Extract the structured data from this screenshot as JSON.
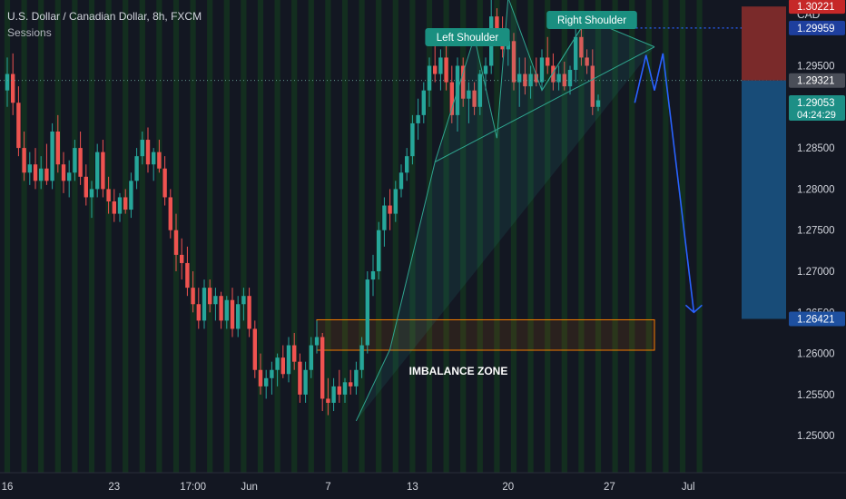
{
  "header": {
    "title": "U.S. Dollar / Canadian Dollar, 8h, FXCM",
    "indicator": "Sessions"
  },
  "chart_data": {
    "type": "candlestick",
    "symbol": "U.S. Dollar / Canadian Dollar",
    "interval": "8h",
    "source": "FXCM",
    "currency": "CAD",
    "ylim": [
      1.2455,
      1.303
    ],
    "y_ticks": [
      "1.25000",
      "1.25500",
      "1.26000",
      "1.26500",
      "1.27000",
      "1.27500",
      "1.28000",
      "1.28500",
      "1.29500"
    ],
    "x_ticks": [
      {
        "label": "16",
        "i": 0
      },
      {
        "label": "23",
        "i": 19
      },
      {
        "label": "17:00",
        "i": 33
      },
      {
        "label": "Jun",
        "i": 43
      },
      {
        "label": "7",
        "i": 57
      },
      {
        "label": "13",
        "i": 72
      },
      {
        "label": "20",
        "i": 89
      },
      {
        "label": "27",
        "i": 107
      },
      {
        "label": "Jul",
        "i": 121
      }
    ],
    "candles": [
      [
        1.292,
        1.296,
        1.29,
        1.294
      ],
      [
        1.294,
        1.2965,
        1.289,
        1.2905
      ],
      [
        1.2905,
        1.2925,
        1.284,
        1.285
      ],
      [
        1.285,
        1.287,
        1.281,
        1.282
      ],
      [
        1.282,
        1.2845,
        1.2805,
        1.283
      ],
      [
        1.283,
        1.285,
        1.28,
        1.281
      ],
      [
        1.281,
        1.284,
        1.28,
        1.2825
      ],
      [
        1.2825,
        1.2855,
        1.2805,
        1.281
      ],
      [
        1.281,
        1.288,
        1.28,
        1.287
      ],
      [
        1.287,
        1.289,
        1.282,
        1.283
      ],
      [
        1.283,
        1.2845,
        1.2795,
        1.281
      ],
      [
        1.281,
        1.2835,
        1.279,
        1.282
      ],
      [
        1.282,
        1.286,
        1.281,
        1.285
      ],
      [
        1.285,
        1.287,
        1.2805,
        1.2815
      ],
      [
        1.2815,
        1.283,
        1.278,
        1.279
      ],
      [
        1.279,
        1.281,
        1.2765,
        1.28
      ],
      [
        1.28,
        1.2855,
        1.279,
        1.2845
      ],
      [
        1.2845,
        1.286,
        1.279,
        1.28
      ],
      [
        1.28,
        1.2815,
        1.277,
        1.2785
      ],
      [
        1.2785,
        1.28,
        1.276,
        1.277
      ],
      [
        1.277,
        1.2795,
        1.276,
        1.279
      ],
      [
        1.279,
        1.28,
        1.277,
        1.2775
      ],
      [
        1.2775,
        1.282,
        1.2765,
        1.281
      ],
      [
        1.281,
        1.285,
        1.28,
        1.284
      ],
      [
        1.284,
        1.287,
        1.283,
        1.286
      ],
      [
        1.286,
        1.2875,
        1.282,
        1.283
      ],
      [
        1.283,
        1.285,
        1.281,
        1.2845
      ],
      [
        1.2845,
        1.286,
        1.282,
        1.2825
      ],
      [
        1.2825,
        1.284,
        1.278,
        1.279
      ],
      [
        1.279,
        1.28,
        1.274,
        1.275
      ],
      [
        1.275,
        1.277,
        1.27,
        1.272
      ],
      [
        1.272,
        1.274,
        1.269,
        1.271
      ],
      [
        1.271,
        1.273,
        1.267,
        1.268
      ],
      [
        1.268,
        1.27,
        1.265,
        1.266
      ],
      [
        1.266,
        1.268,
        1.263,
        1.264
      ],
      [
        1.264,
        1.269,
        1.263,
        1.268
      ],
      [
        1.268,
        1.269,
        1.265,
        1.266
      ],
      [
        1.266,
        1.268,
        1.264,
        1.267
      ],
      [
        1.267,
        1.2675,
        1.263,
        1.264
      ],
      [
        1.264,
        1.267,
        1.263,
        1.2665
      ],
      [
        1.2665,
        1.268,
        1.262,
        1.263
      ],
      [
        1.263,
        1.267,
        1.262,
        1.266
      ],
      [
        1.266,
        1.268,
        1.264,
        1.267
      ],
      [
        1.267,
        1.268,
        1.262,
        1.263
      ],
      [
        1.263,
        1.264,
        1.257,
        1.258
      ],
      [
        1.258,
        1.26,
        1.255,
        1.256
      ],
      [
        1.256,
        1.258,
        1.2545,
        1.257
      ],
      [
        1.257,
        1.259,
        1.255,
        1.258
      ],
      [
        1.258,
        1.26,
        1.256,
        1.2595
      ],
      [
        1.2595,
        1.261,
        1.257,
        1.2575
      ],
      [
        1.2575,
        1.262,
        1.2565,
        1.261
      ],
      [
        1.261,
        1.2625,
        1.258,
        1.259
      ],
      [
        1.259,
        1.26,
        1.254,
        1.255
      ],
      [
        1.255,
        1.259,
        1.254,
        1.258
      ],
      [
        1.258,
        1.262,
        1.257,
        1.261
      ],
      [
        1.261,
        1.264,
        1.26,
        1.262
      ],
      [
        1.262,
        1.2625,
        1.253,
        1.2545
      ],
      [
        1.2545,
        1.257,
        1.2525,
        1.254
      ],
      [
        1.254,
        1.257,
        1.253,
        1.256
      ],
      [
        1.256,
        1.258,
        1.254,
        1.255
      ],
      [
        1.255,
        1.257,
        1.254,
        1.2565
      ],
      [
        1.2565,
        1.258,
        1.255,
        1.256
      ],
      [
        1.256,
        1.259,
        1.255,
        1.258
      ],
      [
        1.258,
        1.262,
        1.257,
        1.261
      ],
      [
        1.261,
        1.27,
        1.26,
        1.269
      ],
      [
        1.269,
        1.272,
        1.267,
        1.27
      ],
      [
        1.27,
        1.276,
        1.269,
        1.275
      ],
      [
        1.275,
        1.279,
        1.273,
        1.278
      ],
      [
        1.278,
        1.28,
        1.275,
        1.277
      ],
      [
        1.277,
        1.281,
        1.276,
        1.28
      ],
      [
        1.28,
        1.283,
        1.279,
        1.282
      ],
      [
        1.282,
        1.285,
        1.281,
        1.284
      ],
      [
        1.284,
        1.289,
        1.283,
        1.288
      ],
      [
        1.288,
        1.291,
        1.286,
        1.289
      ],
      [
        1.289,
        1.293,
        1.288,
        1.292
      ],
      [
        1.292,
        1.296,
        1.29,
        1.295
      ],
      [
        1.295,
        1.2975,
        1.293,
        1.294
      ],
      [
        1.294,
        1.297,
        1.292,
        1.296
      ],
      [
        1.296,
        1.298,
        1.292,
        1.293
      ],
      [
        1.293,
        1.295,
        1.288,
        1.289
      ],
      [
        1.289,
        1.296,
        1.287,
        1.295
      ],
      [
        1.295,
        1.296,
        1.29,
        1.291
      ],
      [
        1.291,
        1.293,
        1.288,
        1.292
      ],
      [
        1.292,
        1.293,
        1.289,
        1.29
      ],
      [
        1.29,
        1.2945,
        1.289,
        1.294
      ],
      [
        1.294,
        1.296,
        1.292,
        1.295
      ],
      [
        1.295,
        1.303,
        1.294,
        1.301
      ],
      [
        1.301,
        1.302,
        1.298,
        1.299
      ],
      [
        1.299,
        1.301,
        1.296,
        1.297
      ],
      [
        1.297,
        1.299,
        1.295,
        1.298
      ],
      [
        1.298,
        1.299,
        1.292,
        1.293
      ],
      [
        1.293,
        1.296,
        1.29,
        1.294
      ],
      [
        1.294,
        1.296,
        1.2915,
        1.2925
      ],
      [
        1.2925,
        1.295,
        1.291,
        1.294
      ],
      [
        1.294,
        1.296,
        1.2925,
        1.293
      ],
      [
        1.293,
        1.297,
        1.292,
        1.296
      ],
      [
        1.296,
        1.2985,
        1.294,
        1.295
      ],
      [
        1.295,
        1.2965,
        1.292,
        1.293
      ],
      [
        1.293,
        1.295,
        1.292,
        1.294
      ],
      [
        1.294,
        1.2955,
        1.292,
        1.2925
      ],
      [
        1.2925,
        1.295,
        1.2915,
        1.2945
      ],
      [
        1.2945,
        1.2995,
        1.293,
        1.2985
      ],
      [
        1.2985,
        1.3,
        1.295,
        1.296
      ],
      [
        1.296,
        1.297,
        1.294,
        1.295
      ],
      [
        1.295,
        1.297,
        1.289,
        1.29
      ],
      [
        1.29,
        1.2915,
        1.2895,
        1.2908
      ]
    ],
    "x_slots": 125,
    "annotations": {
      "left_shoulder": "Left Shoulder",
      "right_shoulder": "Right Shoulder",
      "imbalance_zone": "IMBALANCE ZONE",
      "zone_range": [
        1.2604,
        1.2641
      ],
      "zone_index_range": [
        55,
        115
      ],
      "head_and_shoulders_points": [
        [
          62,
          1.2518
        ],
        [
          68,
          1.2605
        ],
        [
          76,
          1.2833
        ],
        [
          83,
          1.2985
        ],
        [
          87,
          1.2862
        ],
        [
          89,
          1.3033
        ],
        [
          95,
          1.292
        ],
        [
          103,
          1.3007
        ],
        [
          115,
          1.2973
        ]
      ],
      "projection_points": [
        [
          111.5,
          1.2905
        ],
        [
          113.5,
          1.2963
        ],
        [
          115,
          1.292
        ],
        [
          116.5,
          1.2965
        ],
        [
          122,
          1.265
        ]
      ],
      "dotted_levels": [
        1.29959,
        1.29321,
        1.29053
      ]
    },
    "price_labels": [
      {
        "text": "1.30221",
        "value": 1.30221,
        "bg": "#c62828",
        "fg": "#ffffff"
      },
      {
        "text": "1.29959",
        "value": 1.29959,
        "bg": "#1e3f9e",
        "fg": "#ffffff"
      },
      {
        "text": "1.29321",
        "value": 1.29321,
        "bg": "#4a4e58",
        "fg": "#ffffff"
      },
      {
        "text": "1.29053",
        "value": 1.29053,
        "bg": "#1d8f86",
        "fg": "#ffffff",
        "sub": "04:24:29"
      },
      {
        "text": "1.26421",
        "value": 1.26421,
        "bg": "#1e50a0",
        "fg": "#ffffff"
      }
    ],
    "risk_box": {
      "top": 1.30221,
      "mid": 1.29321,
      "bottom": 1.26421
    },
    "colors": {
      "up": "#26a69a",
      "down": "#ef5350",
      "session_band": "#14321f",
      "zone_border": "#f57c00",
      "pattern_line": "#2fa58f",
      "projection": "#2962ff"
    }
  }
}
